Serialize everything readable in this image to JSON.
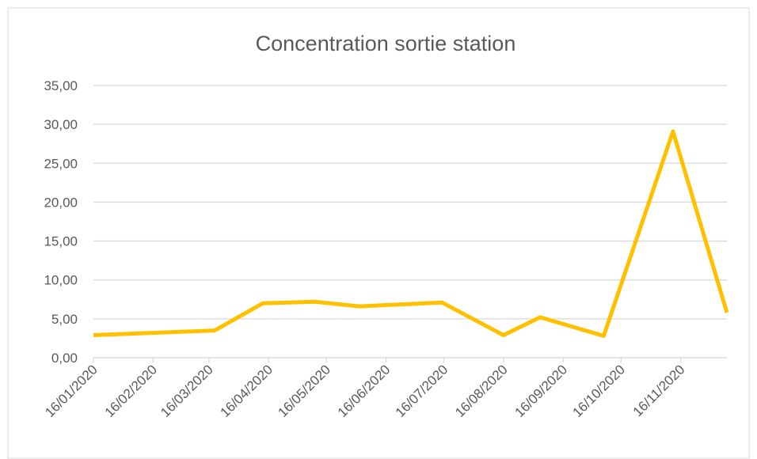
{
  "chart_data": {
    "type": "line",
    "title": "Concentration sortie station",
    "x": [
      "2020-01-16",
      "2020-03-19",
      "2020-04-13",
      "2020-05-10",
      "2020-06-02",
      "2020-07-15",
      "2020-08-16",
      "2020-09-04",
      "2020-10-07",
      "2020-11-12",
      "2020-12-10"
    ],
    "values": [
      2.9,
      3.5,
      7.0,
      7.2,
      6.6,
      7.1,
      2.9,
      5.2,
      2.8,
      29.1,
      5.8
    ],
    "color": "#ffc000",
    "xlim": [
      "2020-01-16",
      "2020-12-10"
    ],
    "xticks": [
      {
        "value": "2020-01-16",
        "label": "16/01/2020"
      },
      {
        "value": "2020-02-16",
        "label": "16/02/2020"
      },
      {
        "value": "2020-03-16",
        "label": "16/03/2020"
      },
      {
        "value": "2020-04-16",
        "label": "16/04/2020"
      },
      {
        "value": "2020-05-16",
        "label": "16/05/2020"
      },
      {
        "value": "2020-06-16",
        "label": "16/06/2020"
      },
      {
        "value": "2020-07-16",
        "label": "16/07/2020"
      },
      {
        "value": "2020-08-16",
        "label": "16/08/2020"
      },
      {
        "value": "2020-09-16",
        "label": "16/09/2020"
      },
      {
        "value": "2020-10-16",
        "label": "16/10/2020"
      },
      {
        "value": "2020-11-16",
        "label": "16/11/2020"
      }
    ],
    "ylim": [
      0,
      35
    ],
    "yticks": [
      {
        "value": 0,
        "label": "0,00"
      },
      {
        "value": 5,
        "label": "5,00"
      },
      {
        "value": 10,
        "label": "10,00"
      },
      {
        "value": 15,
        "label": "15,00"
      },
      {
        "value": 20,
        "label": "20,00"
      },
      {
        "value": 25,
        "label": "25,00"
      },
      {
        "value": 30,
        "label": "30,00"
      },
      {
        "value": 35,
        "label": "35,00"
      }
    ],
    "grid": true
  }
}
